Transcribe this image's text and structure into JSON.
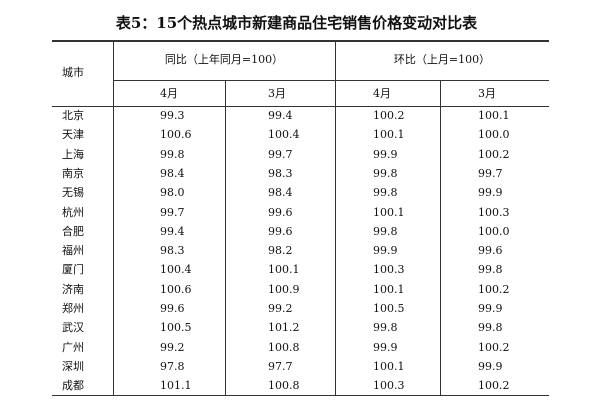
{
  "title": "表5：15个热点城市新建商品住宅销售价格变动对比表",
  "table": {
    "header": {
      "city": "城市",
      "yoy": "同比（上年同月=100）",
      "mom": "环比（上月=100）",
      "months": [
        "4月",
        "3月",
        "4月",
        "3月"
      ]
    },
    "rows": [
      [
        "北京",
        "99.3",
        "99.4",
        "100.2",
        "100.1"
      ],
      [
        "天津",
        "100.6",
        "100.4",
        "100.1",
        "100.0"
      ],
      [
        "上海",
        "99.8",
        "99.7",
        "99.9",
        "100.2"
      ],
      [
        "南京",
        "98.4",
        "98.3",
        "99.8",
        "99.7"
      ],
      [
        "无锡",
        "98.0",
        "98.4",
        "99.8",
        "99.9"
      ],
      [
        "杭州",
        "99.7",
        "99.6",
        "100.1",
        "100.3"
      ],
      [
        "合肥",
        "99.4",
        "99.6",
        "99.8",
        "100.0"
      ],
      [
        "福州",
        "98.3",
        "98.2",
        "99.9",
        "99.6"
      ],
      [
        "厦门",
        "100.4",
        "100.1",
        "100.3",
        "99.8"
      ],
      [
        "济南",
        "100.6",
        "100.9",
        "100.1",
        "100.2"
      ],
      [
        "郑州",
        "99.6",
        "99.2",
        "100.5",
        "99.9"
      ],
      [
        "武汉",
        "100.5",
        "101.2",
        "99.8",
        "99.8"
      ],
      [
        "广州",
        "99.2",
        "100.8",
        "99.9",
        "100.2"
      ],
      [
        "深圳",
        "97.8",
        "97.7",
        "100.1",
        "99.9"
      ],
      [
        "成都",
        "101.1",
        "100.8",
        "100.3",
        "100.2"
      ]
    ]
  }
}
